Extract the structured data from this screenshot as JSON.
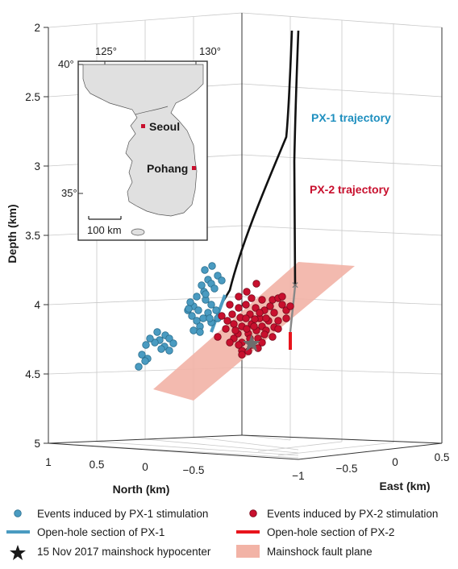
{
  "chart_data": {
    "type": "scatter",
    "title": "",
    "axes": {
      "depth": {
        "label": "Depth (km)",
        "ticks": [
          "2",
          "2.5",
          "3",
          "3.5",
          "4",
          "4.5",
          "5"
        ],
        "range": [
          2,
          5
        ],
        "inverted": true
      },
      "north": {
        "label": "North (km)",
        "ticks": [
          "1",
          "0.5",
          "0",
          "−0.5"
        ],
        "range": [
          1,
          -0.75
        ]
      },
      "east": {
        "label": "East (km)",
        "ticks": [
          "−1",
          "−0.5",
          "0",
          "0.5"
        ],
        "range": [
          -1.3,
          0.5
        ]
      },
      "grid": true
    },
    "series": [
      {
        "name": "Events induced by PX-1 stimulation",
        "color": "#4a9bc1",
        "marker": "circle",
        "points_screen_estimate": "cluster",
        "count": 44
      },
      {
        "name": "Events induced by PX-2 stimulation",
        "color": "#c8102e",
        "marker": "circle",
        "count": 60
      }
    ],
    "trajectories": [
      {
        "name": "PX-1 trajectory",
        "color": "#1e8fbf",
        "open_hole_label": "Open-hole section of PX-1",
        "open_hole_color": "#4a9bc1"
      },
      {
        "name": "PX-2 trajectory",
        "color": "#c8102e",
        "open_hole_label": "Open-hole section of PX-2",
        "open_hole_color": "#e8141c"
      }
    ],
    "mainshock": {
      "label": "15 Nov 2017 mainshock hypocenter",
      "marker": "star",
      "color": "#666666"
    },
    "fault_plane": {
      "label": "Mainshock fault plane",
      "color": "#f2b3a6"
    }
  },
  "labels": {
    "px1_trajectory": "PX-1 trajectory",
    "px2_trajectory": "PX-2 trajectory"
  },
  "inset_map": {
    "lon_ticks": [
      "125°",
      "130°"
    ],
    "lat_ticks": [
      "40°",
      "35°"
    ],
    "cities": [
      "Seoul",
      "Pohang"
    ],
    "scale_bar": "100 km",
    "land_color": "#e0e0e0",
    "marker_color": "#c8102e"
  },
  "legend": {
    "px1_events": "Events induced by PX-1 stimulation",
    "px2_events": "Events induced by PX-2 stimulation",
    "px1_open_hole": "Open-hole section of PX-1",
    "px2_open_hole": "Open-hole section of PX-2",
    "mainshock": "15 Nov 2017 mainshock hypocenter",
    "fault_plane": "Mainshock fault plane"
  }
}
